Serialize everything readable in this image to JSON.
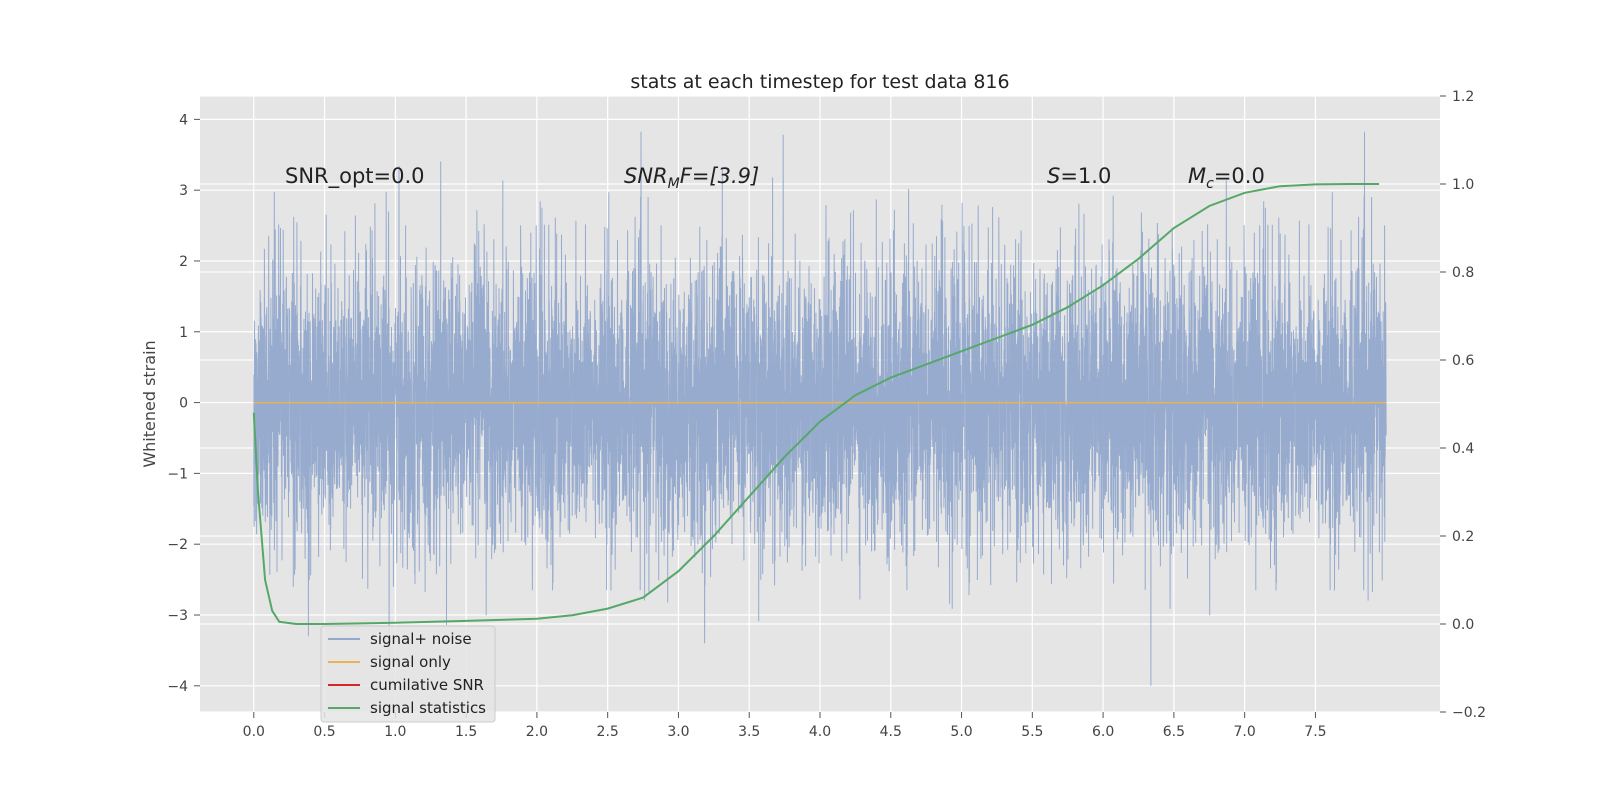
{
  "chart_data": {
    "type": "line",
    "title": "stats at each timestep for test data 816",
    "xlabel": "",
    "ylabel": "Whitened strain",
    "xlim": [
      -0.38,
      8.38
    ],
    "ylim": [
      -4.37,
      4.33
    ],
    "y2lim": [
      -0.2,
      1.2
    ],
    "grid": true,
    "legend_position": "lower-left",
    "x_ticks": [
      "0.0",
      "0.5",
      "1.0",
      "1.5",
      "2.0",
      "2.5",
      "3.0",
      "3.5",
      "4.0",
      "4.5",
      "5.0",
      "5.5",
      "6.0",
      "6.5",
      "7.0",
      "7.5"
    ],
    "y_ticks": [
      "−4",
      "−3",
      "−2",
      "−1",
      "0",
      "1",
      "2",
      "3",
      "4"
    ],
    "y2_ticks": [
      "−0.2",
      "0.0",
      "0.2",
      "0.4",
      "0.6",
      "0.8",
      "1.0",
      "1.2"
    ],
    "annotations": {
      "snr_opt": "SNR_opt=0.0",
      "snr_mf_main": "SNR",
      "snr_mf_sub": "M",
      "snr_mf_rest": "F=[3.9]",
      "s_var": "S",
      "s_rest": "=1.0",
      "mc_main": "M",
      "mc_sub": "c",
      "mc_rest": "=0.0"
    },
    "series": [
      {
        "name": "signal+ noise",
        "color": "#92a8cc",
        "x_range": [
          0.0,
          8.0
        ],
        "sample_count": 8192,
        "band": [
          -2.0,
          2.0
        ],
        "envelope_extremes": [
          -4.0,
          3.95
        ]
      },
      {
        "name": "signal only",
        "color": "#e9b252",
        "x": [
          0.0,
          8.0
        ],
        "y": [
          0.0,
          0.0
        ]
      },
      {
        "name": "cumilative SNR",
        "color": "#d62728",
        "x": [],
        "y": []
      },
      {
        "name": "signal statistics",
        "color": "#55a868",
        "axis": "right",
        "x": [
          0.0,
          0.03,
          0.08,
          0.13,
          0.18,
          0.3,
          0.5,
          1.0,
          1.5,
          2.0,
          2.25,
          2.5,
          2.75,
          3.0,
          3.25,
          3.5,
          3.75,
          4.0,
          4.25,
          4.5,
          4.75,
          5.0,
          5.25,
          5.5,
          5.75,
          6.0,
          6.25,
          6.5,
          6.75,
          7.0,
          7.25,
          7.5,
          7.75,
          7.95
        ],
        "y": [
          0.48,
          0.3,
          0.1,
          0.03,
          0.005,
          0.0,
          0.0,
          0.003,
          0.007,
          0.012,
          0.02,
          0.035,
          0.06,
          0.12,
          0.2,
          0.29,
          0.38,
          0.46,
          0.52,
          0.56,
          0.59,
          0.62,
          0.65,
          0.68,
          0.72,
          0.77,
          0.83,
          0.9,
          0.95,
          0.98,
          0.995,
          0.999,
          1.0,
          1.0
        ]
      }
    ]
  }
}
